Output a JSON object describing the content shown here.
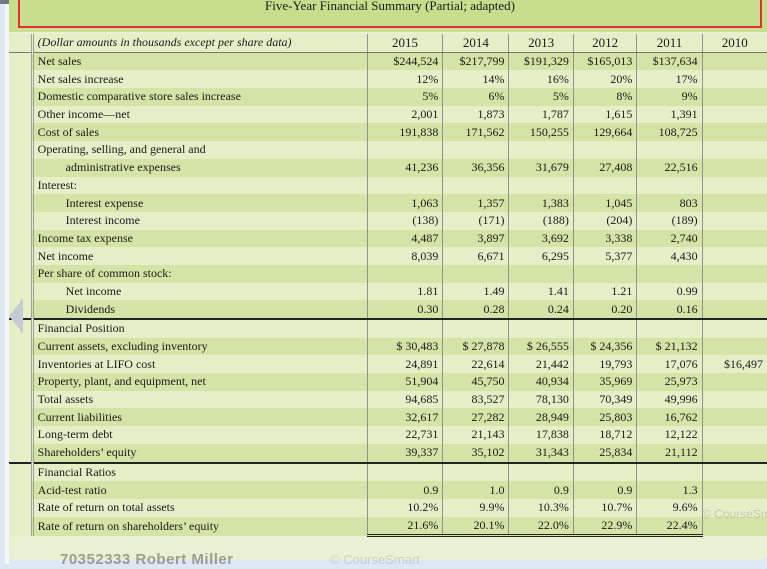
{
  "title": "Five-Year Financial Summary (Partial; adapted)",
  "header": {
    "label": "(Dollar amounts in thousands except per share data)",
    "years": [
      "2015",
      "2014",
      "2013",
      "2012",
      "2011",
      "2010"
    ]
  },
  "rows": [
    {
      "label": "Net sales",
      "values": [
        "$244,524",
        "$217,799",
        "$191,329",
        "$165,013",
        "$137,634",
        ""
      ]
    },
    {
      "label": "Net sales increase",
      "values": [
        "12%",
        "14%",
        "16%",
        "20%",
        "17%",
        ""
      ]
    },
    {
      "label": "Domestic comparative store sales increase",
      "values": [
        "5%",
        "6%",
        "5%",
        "8%",
        "9%",
        ""
      ]
    },
    {
      "label": "Other income—net",
      "values": [
        "2,001",
        "1,873",
        "1,787",
        "1,615",
        "1,391",
        ""
      ]
    },
    {
      "label": "Cost of sales",
      "values": [
        "191,838",
        "171,562",
        "150,255",
        "129,664",
        "108,725",
        ""
      ]
    },
    {
      "label": "Operating, selling, and general and",
      "values": [
        "",
        "",
        "",
        "",
        "",
        ""
      ]
    },
    {
      "label": "administrative expenses",
      "indent": true,
      "values": [
        "41,236",
        "36,356",
        "31,679",
        "27,408",
        "22,516",
        ""
      ]
    },
    {
      "label": "Interest:",
      "values": [
        "",
        "",
        "",
        "",
        "",
        ""
      ]
    },
    {
      "label": "Interest expense",
      "indent": true,
      "values": [
        "1,063",
        "1,357",
        "1,383",
        "1,045",
        "803",
        ""
      ]
    },
    {
      "label": "Interest income",
      "indent": true,
      "values": [
        "(138)",
        "(171)",
        "(188)",
        "(204)",
        "(189)",
        ""
      ]
    },
    {
      "label": "Income tax expense",
      "values": [
        "4,487",
        "3,897",
        "3,692",
        "3,338",
        "2,740",
        ""
      ]
    },
    {
      "label": "Net income",
      "values": [
        "8,039",
        "6,671",
        "6,295",
        "5,377",
        "4,430",
        ""
      ]
    },
    {
      "label": "Per share of common stock:",
      "values": [
        "",
        "",
        "",
        "",
        "",
        ""
      ]
    },
    {
      "label": "Net income",
      "indent": true,
      "values": [
        "1.81",
        "1.49",
        "1.41",
        "1.21",
        "0.99",
        ""
      ]
    },
    {
      "label": "Dividends",
      "indent": true,
      "values": [
        "0.30",
        "0.28",
        "0.24",
        "0.20",
        "0.16",
        ""
      ]
    },
    {
      "label": "Financial Position",
      "values": [
        "",
        "",
        "",
        "",
        "",
        ""
      ]
    },
    {
      "label": "Current assets, excluding inventory",
      "values": [
        "$ 30,483",
        "$ 27,878",
        "$ 26,555",
        "$ 24,356",
        "$ 21,132",
        ""
      ]
    },
    {
      "label": "Inventories at LIFO cost",
      "values": [
        "24,891",
        "22,614",
        "21,442",
        "19,793",
        "17,076",
        "$16,497"
      ]
    },
    {
      "label": "Property, plant, and equipment, net",
      "values": [
        "51,904",
        "45,750",
        "40,934",
        "35,969",
        "25,973",
        ""
      ]
    },
    {
      "label": "Total assets",
      "values": [
        "94,685",
        "83,527",
        "78,130",
        "70,349",
        "49,996",
        ""
      ]
    },
    {
      "label": "Current liabilities",
      "values": [
        "32,617",
        "27,282",
        "28,949",
        "25,803",
        "16,762",
        ""
      ]
    },
    {
      "label": "Long-term debt",
      "values": [
        "22,731",
        "21,143",
        "17,838",
        "18,712",
        "12,122",
        ""
      ]
    },
    {
      "label": "Shareholders’ equity",
      "values": [
        "39,337",
        "35,102",
        "31,343",
        "25,834",
        "21,112",
        ""
      ]
    },
    {
      "label": "Financial Ratios",
      "values": [
        "",
        "",
        "",
        "",
        "",
        ""
      ]
    },
    {
      "label": "Acid-test ratio",
      "values": [
        "0.9",
        "1.0",
        "0.9",
        "0.9",
        "1.3",
        ""
      ]
    },
    {
      "label": "Rate of return on total assets",
      "values": [
        "10.2%",
        "9.9%",
        "10.3%",
        "10.7%",
        "9.6%",
        ""
      ]
    },
    {
      "label": "Rate of return on shareholders’ equity",
      "values": [
        "21.6%",
        "20.1%",
        "22.0%",
        "22.9%",
        "22.4%",
        ""
      ]
    }
  ],
  "watermarks": {
    "user": "70352333 Robert Miller",
    "publisher": "© CourseSmart",
    "publisher_short": "© CourseSm"
  }
}
